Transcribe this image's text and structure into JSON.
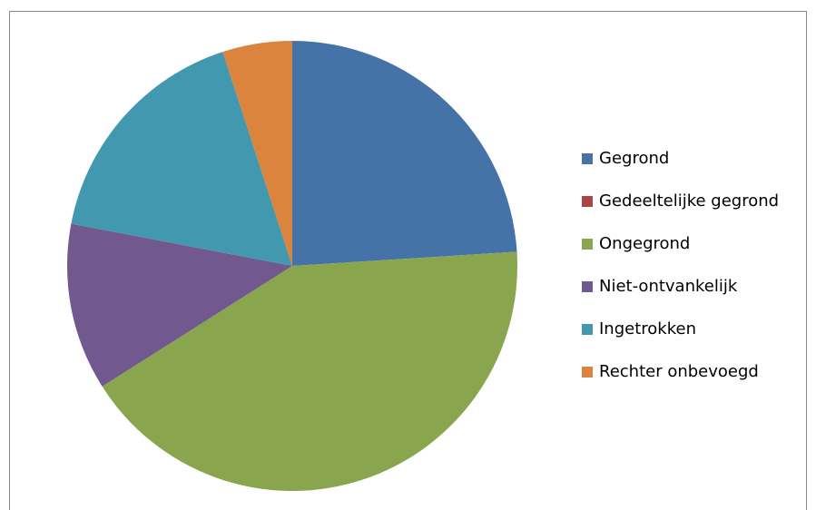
{
  "chart_data": {
    "type": "pie",
    "categories": [
      "Gegrond",
      "Gedeeltelijke gegrond",
      "Ongegrond",
      "Niet-ontvankelijk",
      "Ingetrokken",
      "Rechter onbevoegd"
    ],
    "values": [
      24,
      0,
      42,
      12,
      17,
      5
    ],
    "colors": [
      "#4572a7",
      "#aa4643",
      "#89a54e",
      "#71588f",
      "#4198af",
      "#db843d"
    ],
    "legend": "right"
  }
}
